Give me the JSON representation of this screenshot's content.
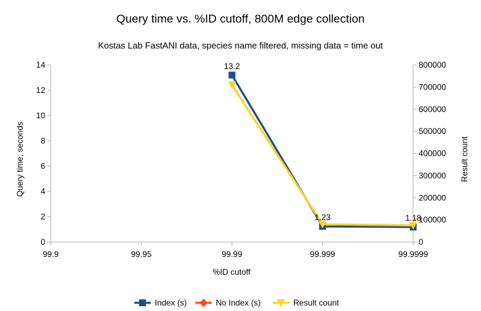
{
  "chart_data": {
    "type": "line",
    "title": "Query time vs. %ID cutoff, 800M edge collection",
    "subtitle": "Kostas Lab FastANI data, species name filtered, missing data = time out",
    "xlabel": "%ID cutoff",
    "ylabel_left": "Query time, seconds",
    "ylabel_right": "Result count",
    "categories": [
      "99.9",
      "99.95",
      "99.99",
      "99.999",
      "99.9999"
    ],
    "ylim_left": [
      0,
      14
    ],
    "yticks_left": [
      "0",
      "2",
      "4",
      "6",
      "8",
      "10",
      "12",
      "14"
    ],
    "ylim_right": [
      0,
      800000
    ],
    "yticks_right": [
      "0",
      "100000",
      "200000",
      "300000",
      "400000",
      "500000",
      "600000",
      "700000",
      "800000"
    ],
    "grid": false,
    "legend_position": "bottom",
    "series": [
      {
        "name": "Index (s)",
        "axis": "left",
        "color": "#1f4e8c",
        "marker": "square",
        "values": [
          null,
          null,
          13.2,
          1.23,
          1.18
        ],
        "labels": [
          "",
          "",
          "13.2",
          "1.23",
          "1.18"
        ]
      },
      {
        "name": "No Index (s)",
        "axis": "left",
        "color": "#ff4a12",
        "marker": "diamond",
        "values": [
          null,
          null,
          null,
          null,
          null
        ],
        "labels": [
          "",
          "",
          "",
          "",
          ""
        ]
      },
      {
        "name": "Result count",
        "axis": "right",
        "color": "#ffd320",
        "marker": "triangle-down",
        "values": [
          null,
          null,
          710000,
          80000,
          75000
        ],
        "labels": [
          "",
          "",
          "",
          "",
          ""
        ]
      }
    ]
  }
}
